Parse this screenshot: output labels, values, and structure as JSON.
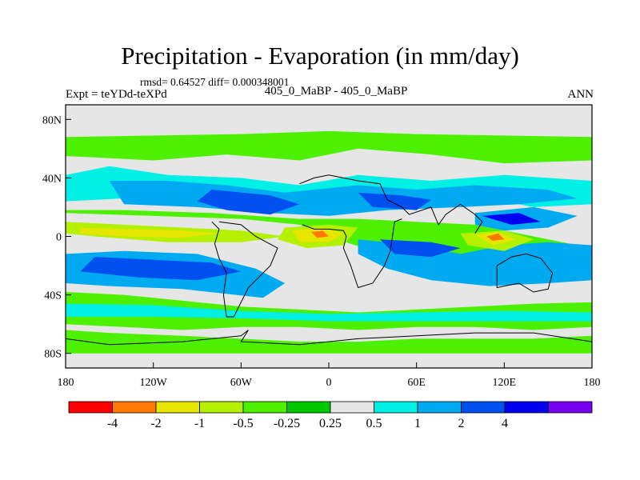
{
  "title": "Precipitation - Evaporation (in mm/day)",
  "stats": "rmsd= 0.64527 diff= 0.000348001",
  "experiment": "Expt = teYDd-teXPd",
  "subtitle": "405_0_MaBP - 405_0_MaBP",
  "season": "ANN",
  "map": {
    "lon_range": [
      -180,
      180
    ],
    "lat_range": [
      -90,
      90
    ],
    "background_color": "#e6e6e6",
    "coastline_color": "#000000",
    "x_ticks": [
      {
        "value": -180,
        "label": "180"
      },
      {
        "value": -120,
        "label": "120W"
      },
      {
        "value": -60,
        "label": "60W"
      },
      {
        "value": 0,
        "label": "0"
      },
      {
        "value": 60,
        "label": "60E"
      },
      {
        "value": 120,
        "label": "120E"
      },
      {
        "value": 180,
        "label": "180"
      }
    ],
    "y_ticks": [
      {
        "value": 80,
        "label": "80N"
      },
      {
        "value": 40,
        "label": "40N"
      },
      {
        "value": 0,
        "label": "0"
      },
      {
        "value": -40,
        "label": "40S"
      },
      {
        "value": -80,
        "label": "80S"
      }
    ],
    "regions": [
      {
        "color": "#4df000",
        "poly": [
          [
            -180,
            68
          ],
          [
            -60,
            70
          ],
          [
            0,
            72
          ],
          [
            60,
            70
          ],
          [
            180,
            68
          ],
          [
            180,
            52
          ],
          [
            120,
            50
          ],
          [
            70,
            56
          ],
          [
            20,
            60
          ],
          [
            -20,
            52
          ],
          [
            -70,
            56
          ],
          [
            -120,
            52
          ],
          [
            -180,
            55
          ]
        ]
      },
      {
        "color": "#00f0e6",
        "poly": [
          [
            -180,
            42
          ],
          [
            -150,
            48
          ],
          [
            -110,
            42
          ],
          [
            -60,
            40
          ],
          [
            -20,
            35
          ],
          [
            20,
            42
          ],
          [
            70,
            38
          ],
          [
            120,
            42
          ],
          [
            180,
            38
          ],
          [
            180,
            22
          ],
          [
            140,
            20
          ],
          [
            100,
            28
          ],
          [
            60,
            25
          ],
          [
            20,
            24
          ],
          [
            -30,
            20
          ],
          [
            -80,
            25
          ],
          [
            -140,
            26
          ],
          [
            -180,
            24
          ]
        ]
      },
      {
        "color": "#00aaf0",
        "poly": [
          [
            -150,
            38
          ],
          [
            -110,
            38
          ],
          [
            -70,
            35
          ],
          [
            -30,
            30
          ],
          [
            20,
            35
          ],
          [
            60,
            32
          ],
          [
            100,
            35
          ],
          [
            150,
            32
          ],
          [
            170,
            26
          ],
          [
            130,
            22
          ],
          [
            90,
            20
          ],
          [
            40,
            18
          ],
          [
            0,
            14
          ],
          [
            -40,
            16
          ],
          [
            -90,
            20
          ],
          [
            -140,
            22
          ]
        ]
      },
      {
        "color": "#0050f0",
        "poly": [
          [
            -80,
            32
          ],
          [
            -40,
            28
          ],
          [
            -20,
            22
          ],
          [
            -40,
            15
          ],
          [
            -70,
            18
          ],
          [
            -90,
            24
          ]
        ]
      },
      {
        "color": "#0050f0",
        "poly": [
          [
            20,
            30
          ],
          [
            50,
            28
          ],
          [
            70,
            25
          ],
          [
            60,
            18
          ],
          [
            30,
            20
          ]
        ]
      },
      {
        "color": "#00aaf0",
        "poly": [
          [
            -180,
            -12
          ],
          [
            -140,
            -10
          ],
          [
            -90,
            -12
          ],
          [
            -50,
            -22
          ],
          [
            -30,
            -32
          ],
          [
            -45,
            -42
          ],
          [
            -100,
            -36
          ],
          [
            -150,
            -34
          ],
          [
            -180,
            -32
          ]
        ]
      },
      {
        "color": "#0050f0",
        "poly": [
          [
            -160,
            -14
          ],
          [
            -120,
            -16
          ],
          [
            -80,
            -18
          ],
          [
            -60,
            -24
          ],
          [
            -90,
            -30
          ],
          [
            -130,
            -28
          ],
          [
            -170,
            -24
          ]
        ]
      },
      {
        "color": "#4df000",
        "poly": [
          [
            -180,
            16
          ],
          [
            -120,
            14
          ],
          [
            -60,
            12
          ],
          [
            -20,
            8
          ],
          [
            0,
            0
          ],
          [
            30,
            -10
          ],
          [
            60,
            -18
          ],
          [
            90,
            -20
          ],
          [
            120,
            -22
          ],
          [
            150,
            -26
          ],
          [
            180,
            -25
          ],
          [
            180,
            -8
          ],
          [
            140,
            0
          ],
          [
            100,
            8
          ],
          [
            60,
            10
          ],
          [
            20,
            12
          ],
          [
            -20,
            12
          ],
          [
            -80,
            16
          ],
          [
            -140,
            18
          ],
          [
            -180,
            18
          ]
        ]
      },
      {
        "color": "#b4f000",
        "poly": [
          [
            -180,
            10
          ],
          [
            -140,
            8
          ],
          [
            -100,
            6
          ],
          [
            -60,
            4
          ],
          [
            -30,
            0
          ],
          [
            -60,
            -4
          ],
          [
            -110,
            -4
          ],
          [
            -160,
            0
          ],
          [
            -180,
            2
          ]
        ]
      },
      {
        "color": "#e6e600",
        "poly": [
          [
            -170,
            6
          ],
          [
            -140,
            5
          ],
          [
            -100,
            4
          ],
          [
            -75,
            2
          ],
          [
            -100,
            -1
          ],
          [
            -140,
            0
          ],
          [
            -170,
            2
          ]
        ]
      },
      {
        "color": "#00aaf0",
        "poly": [
          [
            20,
            -2
          ],
          [
            60,
            -6
          ],
          [
            90,
            -12
          ],
          [
            120,
            -6
          ],
          [
            150,
            -4
          ],
          [
            180,
            -6
          ],
          [
            180,
            -30
          ],
          [
            150,
            -32
          ],
          [
            110,
            -34
          ],
          [
            70,
            -30
          ],
          [
            40,
            -22
          ],
          [
            20,
            -12
          ]
        ]
      },
      {
        "color": "#0050f0",
        "poly": [
          [
            35,
            -2
          ],
          [
            70,
            -4
          ],
          [
            90,
            -8
          ],
          [
            70,
            -14
          ],
          [
            45,
            -12
          ]
        ]
      },
      {
        "color": "#00aaf0",
        "poly": [
          [
            100,
            16
          ],
          [
            140,
            20
          ],
          [
            170,
            14
          ],
          [
            150,
            6
          ],
          [
            120,
            4
          ],
          [
            100,
            8
          ]
        ]
      },
      {
        "color": "#0000f0",
        "poly": [
          [
            105,
            14
          ],
          [
            130,
            16
          ],
          [
            145,
            10
          ],
          [
            125,
            8
          ]
        ]
      },
      {
        "color": "#b4f000",
        "poly": [
          [
            -30,
            6
          ],
          [
            0,
            8
          ],
          [
            20,
            6
          ],
          [
            10,
            -6
          ],
          [
            -15,
            -8
          ],
          [
            -35,
            -2
          ]
        ]
      },
      {
        "color": "#e6e600",
        "poly": [
          [
            -25,
            4
          ],
          [
            -5,
            6
          ],
          [
            10,
            2
          ],
          [
            0,
            -4
          ],
          [
            -20,
            -4
          ]
        ]
      },
      {
        "color": "#ff7800",
        "poly": [
          [
            -12,
            3
          ],
          [
            -4,
            4
          ],
          [
            0,
            0
          ],
          [
            -8,
            -1
          ]
        ]
      },
      {
        "color": "#b4f000",
        "poly": [
          [
            90,
            2
          ],
          [
            120,
            4
          ],
          [
            140,
            -2
          ],
          [
            120,
            -10
          ],
          [
            95,
            -6
          ]
        ]
      },
      {
        "color": "#e6e600",
        "poly": [
          [
            100,
            1
          ],
          [
            115,
            3
          ],
          [
            128,
            -2
          ],
          [
            112,
            -6
          ]
        ]
      },
      {
        "color": "#ff7800",
        "poly": [
          [
            108,
            0
          ],
          [
            116,
            2
          ],
          [
            120,
            -2
          ],
          [
            112,
            -3
          ]
        ]
      },
      {
        "color": "#4df000",
        "poly": [
          [
            -180,
            -38
          ],
          [
            -140,
            -40
          ],
          [
            -100,
            -44
          ],
          [
            -60,
            -48
          ],
          [
            -20,
            -50
          ],
          [
            20,
            -52
          ],
          [
            60,
            -50
          ],
          [
            100,
            -48
          ],
          [
            140,
            -46
          ],
          [
            180,
            -45
          ],
          [
            180,
            -62
          ],
          [
            140,
            -64
          ],
          [
            100,
            -62
          ],
          [
            60,
            -62
          ],
          [
            20,
            -64
          ],
          [
            -20,
            -62
          ],
          [
            -60,
            -62
          ],
          [
            -100,
            -64
          ],
          [
            -140,
            -62
          ],
          [
            -180,
            -60
          ]
        ]
      },
      {
        "color": "#00f0e6",
        "poly": [
          [
            -180,
            -46
          ],
          [
            -120,
            -47
          ],
          [
            -60,
            -51
          ],
          [
            0,
            -53
          ],
          [
            60,
            -52
          ],
          [
            120,
            -51
          ],
          [
            180,
            -52
          ],
          [
            180,
            -58
          ],
          [
            120,
            -58
          ],
          [
            60,
            -58
          ],
          [
            0,
            -58
          ],
          [
            -60,
            -56
          ],
          [
            -120,
            -55
          ],
          [
            -180,
            -55
          ]
        ]
      },
      {
        "color": "#4df000",
        "poly": [
          [
            -180,
            -64
          ],
          [
            -150,
            -66
          ],
          [
            -100,
            -68
          ],
          [
            -60,
            -70
          ],
          [
            -20,
            -72
          ],
          [
            20,
            -72
          ],
          [
            60,
            -70
          ],
          [
            100,
            -70
          ],
          [
            140,
            -70
          ],
          [
            180,
            -68
          ],
          [
            180,
            -80
          ],
          [
            -180,
            -80
          ]
        ]
      }
    ],
    "coastlines": [
      [
        [
          -20,
          36
        ],
        [
          -10,
          40
        ],
        [
          0,
          42
        ],
        [
          20,
          38
        ],
        [
          35,
          36
        ],
        [
          40,
          25
        ],
        [
          50,
          20
        ],
        [
          55,
          15
        ],
        [
          70,
          20
        ],
        [
          75,
          8
        ],
        [
          80,
          15
        ],
        [
          90,
          22
        ],
        [
          100,
          15
        ],
        [
          105,
          10
        ],
        [
          100,
          2
        ]
      ],
      [
        [
          -18,
          8
        ],
        [
          -10,
          5
        ],
        [
          0,
          5
        ],
        [
          10,
          4
        ],
        [
          12,
          0
        ],
        [
          10,
          -8
        ],
        [
          15,
          -20
        ],
        [
          20,
          -35
        ],
        [
          30,
          -32
        ],
        [
          38,
          -20
        ],
        [
          42,
          -10
        ],
        [
          45,
          10
        ],
        [
          50,
          12
        ]
      ],
      [
        [
          -80,
          10
        ],
        [
          -75,
          5
        ],
        [
          -78,
          -5
        ],
        [
          -75,
          -15
        ],
        [
          -70,
          -25
        ],
        [
          -72,
          -40
        ],
        [
          -70,
          -55
        ],
        [
          -65,
          -55
        ],
        [
          -60,
          -45
        ],
        [
          -55,
          -35
        ],
        [
          -45,
          -25
        ],
        [
          -40,
          -20
        ],
        [
          -35,
          -8
        ],
        [
          -50,
          0
        ],
        [
          -60,
          8
        ],
        [
          -75,
          10
        ]
      ],
      [
        [
          115,
          -20
        ],
        [
          115,
          -35
        ],
        [
          130,
          -32
        ],
        [
          140,
          -38
        ],
        [
          150,
          -36
        ],
        [
          153,
          -25
        ],
        [
          145,
          -15
        ],
        [
          135,
          -12
        ],
        [
          125,
          -14
        ],
        [
          115,
          -20
        ]
      ],
      [
        [
          -180,
          -70
        ],
        [
          -150,
          -74
        ],
        [
          -100,
          -72
        ],
        [
          -60,
          -68
        ],
        [
          -55,
          -64
        ],
        [
          -60,
          -72
        ],
        [
          -20,
          -74
        ],
        [
          20,
          -70
        ],
        [
          60,
          -68
        ],
        [
          100,
          -66
        ],
        [
          140,
          -66
        ],
        [
          180,
          -72
        ]
      ]
    ]
  },
  "colorbar": {
    "colors": [
      "#ff0000",
      "#ff7800",
      "#e6e600",
      "#b4f000",
      "#4df000",
      "#00c800",
      "#e6e6e6",
      "#00f0e6",
      "#00aaf0",
      "#0050f0",
      "#0000f0",
      "#7800f0"
    ],
    "labels": [
      "-4",
      "-2",
      "-1",
      "-0.5",
      "-0.25",
      "0.25",
      "0.5",
      "1",
      "2",
      "4"
    ],
    "label_boundaries": [
      1,
      2,
      3,
      4,
      5,
      6,
      7,
      8,
      9,
      10
    ]
  }
}
